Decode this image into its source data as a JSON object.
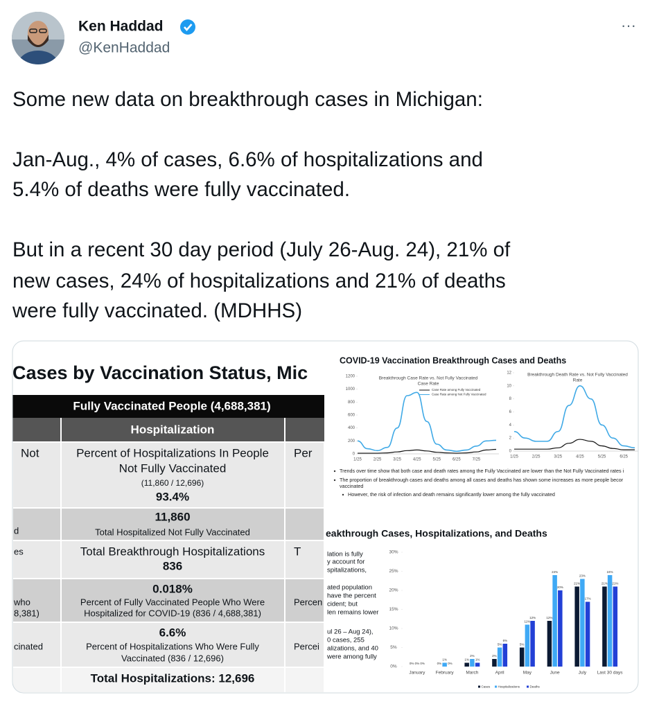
{
  "tweet": {
    "author": "Ken Haddad",
    "handle": "@KenHaddad",
    "more": "···",
    "paragraphs": [
      [
        "Some new data on breakthrough cases in Michigan:"
      ],
      [
        "Jan-Aug., 4% of cases, 6.6% of hospitalizations and",
        "5.4% of deaths were fully vaccinated."
      ],
      [
        "But in a recent 30 day period (July 26-Aug. 24), 21% of",
        "new cases, 24% of hospitalizations and 21% of deaths",
        "were fully vaccinated. (MDHHS)"
      ]
    ]
  },
  "image": {
    "table": {
      "title": "Cases by Vaccination Status, Mic",
      "header": "Fully Vaccinated People (4,688,381)",
      "subheader": "Hospitalization",
      "rows": [
        {
          "left": [
            "Not"
          ],
          "center": [
            "Percent of Hospitalizations  In People",
            "Not Fully Vaccinated",
            "(11,860 / 12,696)",
            "93.4%"
          ],
          "right": [
            "Per"
          ]
        },
        {
          "left": [
            "d"
          ],
          "center": [
            "11,860",
            "Total Hospitalized Not Fully Vaccinated"
          ],
          "right": []
        },
        {
          "left": [
            "es"
          ],
          "center": [
            "Total Breakthrough Hospitalizations",
            "836"
          ],
          "right": [
            "T"
          ]
        },
        {
          "left": [
            "who",
            "8,381)"
          ],
          "center": [
            "0.018%",
            "Percent of Fully Vaccinated People Who Were",
            "Hospitalized for COVID-19 (836 / 4,688,381)"
          ],
          "right": [
            "Percen"
          ]
        },
        {
          "left": [
            "cinated"
          ],
          "center": [
            "6.6%",
            "Percent of Hospitalizations  Who Were Fully",
            "Vaccinated (836 / 12,696)"
          ],
          "right": [
            "Percei"
          ]
        }
      ],
      "footer": "Total Hospitalizations:  12,696"
    },
    "line_charts": {
      "title": "COVID-19 Vaccination Breakthrough Cases and Deaths",
      "case_chart": {
        "type": "line",
        "title": [
          "Breakthrough Case Rate vs. Not Fully Vaccinated",
          "Case Rate"
        ],
        "categories": [
          "1/25",
          null,
          "2/25",
          null,
          "3/25",
          null,
          "4/25",
          null,
          "5/25",
          null,
          "6/25",
          null,
          "7/25",
          null,
          null
        ],
        "series": [
          {
            "name": "Case Rate among Fully Vaccinated",
            "color": "#111111",
            "values": [
              10,
              10,
              10,
              15,
              30,
              50,
              60,
              45,
              25,
              15,
              10,
              15,
              30,
              60,
              70
            ]
          },
          {
            "name": "Case Rate among Not Fully Vaccinated",
            "color": "#3fa9e6",
            "values": [
              200,
              80,
              50,
              100,
              400,
              900,
              950,
              500,
              150,
              60,
              40,
              60,
              120,
              200,
              210
            ]
          }
        ],
        "ylim": [
          0,
          1200
        ],
        "yticks": [
          0,
          200,
          400,
          600,
          800,
          1000,
          1200
        ]
      },
      "death_chart": {
        "type": "line",
        "title": [
          "Breakthrough Death Rate vs. Not Fully Vaccinated",
          "Rate"
        ],
        "categories": [
          "1/25",
          null,
          "2/25",
          null,
          "3/25",
          null,
          "4/25",
          null,
          "5/25",
          null,
          "6/25",
          null
        ],
        "series": [
          {
            "name": "Fully Vaccinated",
            "color": "#111111",
            "values": [
              0.3,
              0.3,
              0.3,
              0.3,
              0.5,
              1.2,
              1.8,
              1.5,
              0.8,
              0.4,
              0.2,
              0.2
            ]
          },
          {
            "name": "Not Fully Vaccinated",
            "color": "#3fa9e6",
            "values": [
              3,
              2,
              1.5,
              1.5,
              3,
              7,
              10,
              8,
              4,
              2,
              0.8,
              0.5
            ]
          }
        ],
        "ylim": [
          0,
          12
        ],
        "yticks": [
          0,
          2,
          4,
          6,
          8,
          10,
          12
        ]
      },
      "bullets": [
        "Trends over time show that both case and death rates among the Fully Vaccinated are lower than the Not Fully Vaccinated rates i",
        "The proportion of breakthrough cases and deaths among all cases and deaths has shown some increases as more people becor",
        "vaccinated",
        "However, the risk of infection and death remains significantly lower among the fully vaccinated"
      ]
    },
    "bar_chart": {
      "type": "bar",
      "title": "eakthrough Cases, Hospitalizations, and Deaths",
      "side_text": [
        "lation is fully",
        "y account for",
        "spitalizations,",
        "ated population",
        "have the percent",
        "cident; but",
        "len remains lower",
        "ul 26 – Aug 24),",
        "0 cases, 255",
        "alizations, and 40",
        "were among fully"
      ],
      "categories": [
        "January",
        "February",
        "March",
        "April",
        "May",
        "June",
        "July",
        "Last 30 days"
      ],
      "series": [
        {
          "name": "Cases",
          "color": "#0b1a33",
          "values": [
            0,
            0,
            1,
            2,
            5,
            12,
            21,
            21
          ],
          "value_labels": [
            "0%",
            "0%",
            "1%",
            "2%",
            "5%",
            "12%",
            "21%",
            "21%"
          ]
        },
        {
          "name": "Hospitalizations",
          "color": "#3fa9f5",
          "values": [
            0,
            1,
            2,
            5,
            11,
            24,
            23,
            24
          ],
          "value_labels": [
            "0%",
            "1%",
            "2%",
            "5%",
            "11%",
            "24%",
            "23%",
            "24%"
          ]
        },
        {
          "name": "Deaths",
          "color": "#2340d6",
          "values": [
            0,
            0,
            1,
            6,
            12,
            20,
            17,
            21
          ],
          "value_labels": [
            "0%",
            "0%",
            "1%",
            "6%",
            "12%",
            "20%",
            "17%",
            "21%"
          ]
        }
      ],
      "ylim": [
        0,
        30
      ],
      "yticks": [
        {
          "value": 0,
          "label": "0%"
        },
        {
          "value": 5,
          "label": "5%"
        },
        {
          "value": 10,
          "label": "10%"
        },
        {
          "value": 15,
          "label": "15%"
        },
        {
          "value": 20,
          "label": "20%"
        },
        {
          "value": 25,
          "label": "25%"
        },
        {
          "value": 30,
          "label": "30%"
        }
      ]
    }
  }
}
